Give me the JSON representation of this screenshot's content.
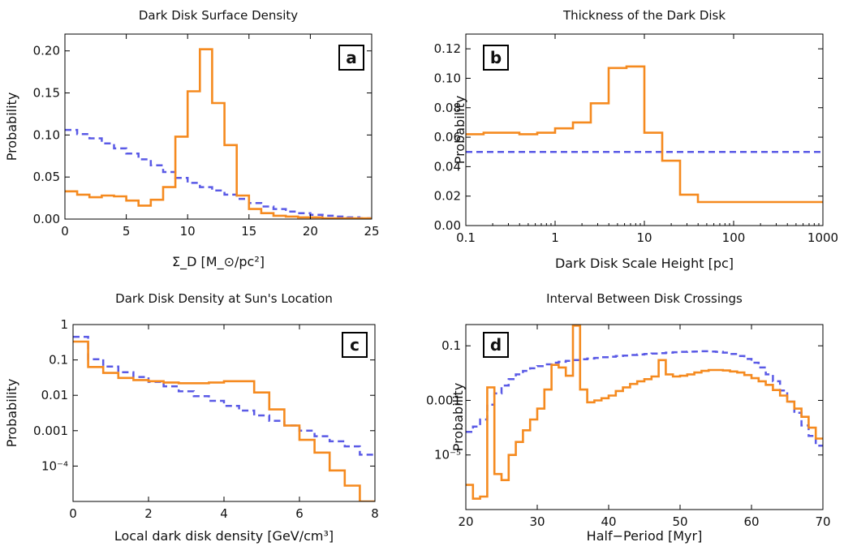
{
  "chart_data": [
    {
      "type": "step",
      "panel": "a",
      "title": "Dark Disk Surface Density",
      "xlabel": "Σ_D [M_⊙/pc²]",
      "ylabel": "Probability",
      "xscale": "linear",
      "yscale": "linear",
      "xlim": [
        0,
        25
      ],
      "ylim": [
        0,
        0.22
      ],
      "xticks": [
        0,
        5,
        10,
        15,
        20,
        25
      ],
      "xtick_labels": [
        "0",
        "5",
        "10",
        "15",
        "20",
        "25"
      ],
      "yticks": [
        0,
        0.05,
        0.1,
        0.15,
        0.2
      ],
      "ytick_labels": [
        "0.00",
        "0.05",
        "0.10",
        "0.15",
        "0.20"
      ],
      "series": [
        {
          "style": "dashed",
          "color": "#5a5ae6",
          "edges": [
            0,
            1,
            2,
            3,
            4,
            5,
            6,
            7,
            8,
            9,
            10,
            11,
            12,
            13,
            14,
            15,
            16,
            17,
            18,
            19,
            20,
            21,
            22,
            23,
            24,
            25
          ],
          "values": [
            0.106,
            0.101,
            0.096,
            0.09,
            0.084,
            0.078,
            0.071,
            0.064,
            0.056,
            0.049,
            0.043,
            0.038,
            0.034,
            0.029,
            0.024,
            0.019,
            0.015,
            0.012,
            0.009,
            0.007,
            0.005,
            0.004,
            0.003,
            0.002,
            0.001
          ]
        },
        {
          "style": "solid",
          "color": "#f58a1f",
          "edges": [
            0,
            1,
            2,
            3,
            4,
            5,
            6,
            7,
            8,
            9,
            10,
            11,
            12,
            13,
            14,
            15,
            16,
            17,
            18,
            19,
            20,
            21,
            22,
            23,
            24,
            25
          ],
          "values": [
            0.033,
            0.029,
            0.026,
            0.028,
            0.027,
            0.022,
            0.016,
            0.023,
            0.038,
            0.098,
            0.152,
            0.202,
            0.138,
            0.088,
            0.028,
            0.012,
            0.007,
            0.004,
            0.003,
            0.002,
            0.002,
            0.001,
            0.001,
            0.001,
            0.001
          ]
        }
      ]
    },
    {
      "type": "step",
      "panel": "b",
      "title": "Thickness of the Dark Disk",
      "xlabel": "Dark Disk Scale Height [pc]",
      "ylabel": "Probability",
      "xscale": "log",
      "yscale": "linear",
      "xlim": [
        0.1,
        1000
      ],
      "ylim": [
        0,
        0.13
      ],
      "xticks": [
        0.1,
        1,
        10,
        100,
        1000
      ],
      "xtick_labels": [
        "0.1",
        "1",
        "10",
        "100",
        "1000"
      ],
      "yticks": [
        0,
        0.02,
        0.04,
        0.06,
        0.08,
        0.1,
        0.12
      ],
      "ytick_labels": [
        "0.00",
        "0.02",
        "0.04",
        "0.06",
        "0.08",
        "0.10",
        "0.12"
      ],
      "series": [
        {
          "style": "dashed",
          "color": "#5a5ae6",
          "edges": [
            0.1,
            1000
          ],
          "values": [
            0.05
          ]
        },
        {
          "style": "solid",
          "color": "#f58a1f",
          "edges": [
            0.1,
            0.158,
            0.251,
            0.398,
            0.631,
            1,
            1.585,
            2.512,
            3.981,
            6.31,
            10,
            15.85,
            25.12,
            39.81,
            63.1,
            100,
            158.5,
            251.2,
            398.1,
            631,
            1000
          ],
          "values": [
            0.062,
            0.063,
            0.063,
            0.062,
            0.063,
            0.066,
            0.07,
            0.083,
            0.107,
            0.108,
            0.063,
            0.044,
            0.021,
            0.016,
            0.016,
            0.016,
            0.016,
            0.016,
            0.016,
            0.016
          ]
        }
      ]
    },
    {
      "type": "step",
      "panel": "c",
      "title": "Dark Disk Density at Sun's Location",
      "xlabel": "Local dark disk density [GeV/cm³]",
      "ylabel": "Probability",
      "xscale": "linear",
      "yscale": "log",
      "xlim": [
        0,
        8
      ],
      "ylim": [
        1e-05,
        1
      ],
      "xticks": [
        0,
        2,
        4,
        6,
        8
      ],
      "xtick_labels": [
        "0",
        "2",
        "4",
        "6",
        "8"
      ],
      "yticks": [
        1,
        0.1,
        0.01,
        0.001,
        0.0001
      ],
      "ytick_labels": [
        "1",
        "0.1",
        "0.01",
        "0.001",
        "10⁻⁴"
      ],
      "series": [
        {
          "style": "dashed",
          "color": "#5a5ae6",
          "edges": [
            0,
            0.4,
            0.8,
            1.2,
            1.6,
            2.0,
            2.4,
            2.8,
            3.2,
            3.6,
            4.0,
            4.4,
            4.8,
            5.2,
            5.6,
            6.0,
            6.4,
            6.8,
            7.2,
            7.6,
            8.0
          ],
          "values": [
            0.45,
            0.105,
            0.065,
            0.045,
            0.033,
            0.024,
            0.018,
            0.013,
            0.0095,
            0.007,
            0.005,
            0.0037,
            0.0027,
            0.0019,
            0.0014,
            0.001,
            0.0007,
            0.0005,
            0.00036,
            0.00021
          ]
        },
        {
          "style": "solid",
          "color": "#f58a1f",
          "edges": [
            0,
            0.4,
            0.8,
            1.2,
            1.6,
            2.0,
            2.4,
            2.8,
            3.2,
            3.6,
            4.0,
            4.4,
            4.8,
            5.2,
            5.6,
            6.0,
            6.4,
            6.8,
            7.2,
            7.6,
            8.0
          ],
          "values": [
            0.33,
            0.063,
            0.043,
            0.031,
            0.027,
            0.025,
            0.023,
            0.022,
            0.022,
            0.023,
            0.025,
            0.025,
            0.012,
            0.004,
            0.0014,
            0.00055,
            0.00024,
            7.5e-05,
            2.8e-05,
            1e-05
          ]
        }
      ]
    },
    {
      "type": "step",
      "panel": "d",
      "title": "Interval Between Disk Crossings",
      "xlabel": "Half−Period [Myr]",
      "ylabel": "Probability",
      "xscale": "linear",
      "yscale": "log",
      "xlim": [
        20,
        70
      ],
      "ylim": [
        1e-07,
        0.6
      ],
      "xticks": [
        20,
        30,
        40,
        50,
        60,
        70
      ],
      "xtick_labels": [
        "20",
        "30",
        "40",
        "50",
        "60",
        "70"
      ],
      "yticks": [
        0.1,
        0.001,
        1e-05
      ],
      "ytick_labels": [
        "0.1",
        "0.001",
        "10⁻⁵"
      ],
      "series": [
        {
          "style": "dashed",
          "color": "#5a5ae6",
          "edges": [
            20,
            21,
            22,
            23,
            24,
            25,
            26,
            27,
            28,
            29,
            30,
            31,
            32,
            33,
            34,
            35,
            36,
            37,
            38,
            39,
            40,
            41,
            42,
            43,
            44,
            45,
            46,
            47,
            48,
            49,
            50,
            51,
            52,
            53,
            54,
            55,
            56,
            57,
            58,
            59,
            60,
            61,
            62,
            63,
            64,
            65,
            66,
            67,
            68,
            69,
            70
          ],
          "values": [
            7e-05,
            0.00011,
            0.0002,
            0.0007,
            0.0018,
            0.0035,
            0.006,
            0.009,
            0.012,
            0.015,
            0.018,
            0.021,
            0.024,
            0.026,
            0.028,
            0.03,
            0.032,
            0.034,
            0.036,
            0.038,
            0.04,
            0.042,
            0.044,
            0.046,
            0.048,
            0.05,
            0.052,
            0.054,
            0.056,
            0.058,
            0.06,
            0.061,
            0.062,
            0.063,
            0.062,
            0.06,
            0.056,
            0.05,
            0.042,
            0.033,
            0.024,
            0.016,
            0.009,
            0.005,
            0.0023,
            0.0009,
            0.00035,
            0.00012,
            5e-05,
            2.2e-05
          ]
        },
        {
          "style": "solid",
          "color": "#f58a1f",
          "edges": [
            20,
            21,
            22,
            23,
            24,
            25,
            26,
            27,
            28,
            29,
            30,
            31,
            32,
            33,
            34,
            35,
            36,
            37,
            38,
            39,
            40,
            41,
            42,
            43,
            44,
            45,
            46,
            47,
            48,
            49,
            50,
            51,
            52,
            53,
            54,
            55,
            56,
            57,
            58,
            59,
            60,
            61,
            62,
            63,
            64,
            65,
            66,
            67,
            68,
            69,
            70
          ],
          "values": [
            8e-07,
            2.5e-07,
            3e-07,
            0.003,
            2e-06,
            1.2e-06,
            1e-05,
            3e-05,
            8e-05,
            0.0002,
            0.0005,
            0.0025,
            0.02,
            0.016,
            0.008,
            0.55,
            0.0025,
            0.00085,
            0.001,
            0.0012,
            0.0015,
            0.0022,
            0.003,
            0.004,
            0.005,
            0.006,
            0.0075,
            0.03,
            0.009,
            0.0075,
            0.008,
            0.009,
            0.0105,
            0.012,
            0.013,
            0.013,
            0.0125,
            0.0115,
            0.0105,
            0.0085,
            0.0065,
            0.005,
            0.0037,
            0.0024,
            0.0015,
            0.0009,
            0.0005,
            0.00025,
            0.0001,
            4e-05
          ]
        }
      ]
    }
  ]
}
